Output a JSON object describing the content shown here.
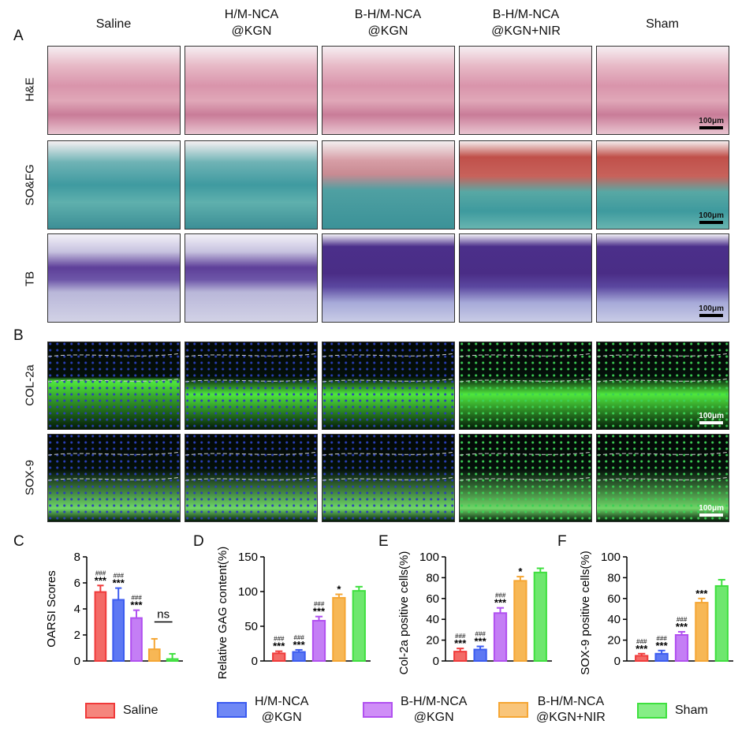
{
  "panel_letters": {
    "A": "A",
    "B": "B",
    "C": "C",
    "D": "D",
    "E": "E",
    "F": "F"
  },
  "columns": [
    "Saline",
    "H/M-NCA\n@KGN",
    "B-H/M-NCA\n@KGN",
    "B-H/M-NCA\n@KGN+NIR",
    "Sham"
  ],
  "rows_A": [
    "H&E",
    "SO&FG",
    "TB"
  ],
  "rows_B": [
    "COL-2a",
    "SOX-9"
  ],
  "scale_label": "100μm",
  "colors": {
    "saline": "#f03a3a",
    "hm": "#3b5bf0",
    "bhm": "#b150f0",
    "bhmnir": "#f5a634",
    "sham": "#3fe03f"
  },
  "legend": [
    {
      "label": "Saline",
      "color": "#f03a3a"
    },
    {
      "label": "H/M-NCA\n@KGN",
      "color": "#3b5bf0"
    },
    {
      "label": "B-H/M-NCA\n@KGN",
      "color": "#b150f0"
    },
    {
      "label": "B-H/M-NCA\n@KGN+NIR",
      "color": "#f5a634"
    },
    {
      "label": "Sham",
      "color": "#3fe03f"
    }
  ],
  "chart_data": [
    {
      "panel": "C",
      "type": "bar",
      "ylabel": "OARSI Scores",
      "ylim": [
        0,
        8
      ],
      "yticks": [
        0,
        2,
        4,
        6,
        8
      ],
      "categories": [
        "Saline",
        "H/M-NCA @KGN",
        "B-H/M-NCA @KGN",
        "B-H/M-NCA @KGN+NIR",
        "Sham"
      ],
      "values": [
        5.3,
        4.7,
        3.3,
        0.9,
        0.15
      ],
      "errors": [
        0.5,
        0.9,
        0.6,
        0.8,
        0.4
      ],
      "annotations": [
        "###\n***",
        "###\n***",
        "###\n***",
        "",
        ""
      ],
      "bracket": {
        "from": 3,
        "to": 4,
        "label": "ns"
      }
    },
    {
      "panel": "D",
      "type": "bar",
      "ylabel": "Relative GAG content(%)",
      "ylim": [
        0,
        150
      ],
      "yticks": [
        0,
        50,
        100,
        150
      ],
      "categories": [
        "Saline",
        "H/M-NCA @KGN",
        "B-H/M-NCA @KGN",
        "B-H/M-NCA @KGN+NIR",
        "Sham"
      ],
      "values": [
        11,
        13,
        58,
        91,
        101
      ],
      "errors": [
        3,
        3,
        6,
        5,
        6
      ],
      "annotations": [
        "###\n***",
        "###\n***",
        "###\n***",
        "*",
        ""
      ]
    },
    {
      "panel": "E",
      "type": "bar",
      "ylabel": "Col-2a positive cells(%)",
      "ylim": [
        0,
        100
      ],
      "yticks": [
        0,
        20,
        40,
        60,
        80,
        100
      ],
      "categories": [
        "Saline",
        "H/M-NCA @KGN",
        "B-H/M-NCA @KGN",
        "B-H/M-NCA @KGN+NIR",
        "Sham"
      ],
      "values": [
        9,
        11,
        46,
        77,
        85
      ],
      "errors": [
        3,
        3,
        5,
        4,
        4
      ],
      "annotations": [
        "###\n***",
        "###\n***",
        "###\n***",
        "*",
        ""
      ]
    },
    {
      "panel": "F",
      "type": "bar",
      "ylabel": "SOX-9 positive cells(%)",
      "ylim": [
        0,
        100
      ],
      "yticks": [
        0,
        20,
        40,
        60,
        80,
        100
      ],
      "categories": [
        "Saline",
        "H/M-NCA @KGN",
        "B-H/M-NCA @KGN",
        "B-H/M-NCA @KGN+NIR",
        "Sham"
      ],
      "values": [
        5,
        7,
        25,
        56,
        72
      ],
      "errors": [
        2,
        3,
        3,
        4,
        6
      ],
      "annotations": [
        "###\n***",
        "###\n***",
        "###\n***",
        "***",
        ""
      ]
    }
  ]
}
